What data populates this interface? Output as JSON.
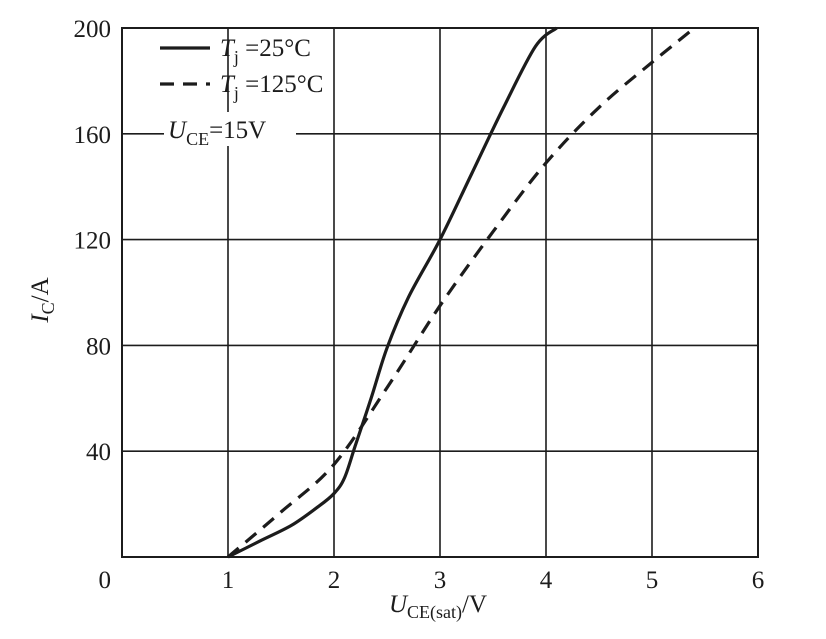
{
  "chart_data": {
    "type": "line",
    "title": "",
    "xlabel": {
      "var": "U",
      "sub": "CE(sat)",
      "unit": "/V"
    },
    "ylabel": {
      "var": "I",
      "sub": "C",
      "unit": "/A"
    },
    "xlim": [
      0,
      6
    ],
    "ylim": [
      0,
      200
    ],
    "x_ticks": [
      "0",
      "1",
      "2",
      "3",
      "4",
      "5",
      "6"
    ],
    "y_ticks": [
      "40",
      "80",
      "120",
      "160",
      "200"
    ],
    "grid": true,
    "legend_position": "top-left",
    "series": [
      {
        "name": "Tj=25°C",
        "legend": {
          "var": "T",
          "sub": "j",
          "rest": " =25°C"
        },
        "style": "solid",
        "x": [
          1.0,
          1.3,
          1.6,
          1.85,
          2.0,
          2.1,
          2.2,
          2.35,
          2.5,
          2.7,
          3.0,
          3.3,
          3.6,
          3.9,
          4.1
        ],
        "y": [
          0,
          6,
          12,
          19,
          24,
          30,
          42,
          60,
          79,
          98,
          120,
          145,
          170,
          193,
          200
        ]
      },
      {
        "name": "Tj=125°C",
        "legend": {
          "var": "T",
          "sub": "j",
          "rest": " =125°C"
        },
        "style": "dashed",
        "x": [
          1.0,
          1.5,
          2.0,
          2.5,
          3.0,
          3.5,
          4.0,
          4.5,
          5.0,
          5.4
        ],
        "y": [
          0,
          17,
          35,
          64,
          95,
          123,
          149,
          170,
          187,
          200
        ]
      }
    ],
    "annotations": [
      {
        "var": "U",
        "sub": "CE",
        "rest": "=15V"
      }
    ],
    "colors": {
      "line": "#1c1c1c",
      "grid": "#1c1c1c",
      "background": "#ffffff"
    }
  }
}
